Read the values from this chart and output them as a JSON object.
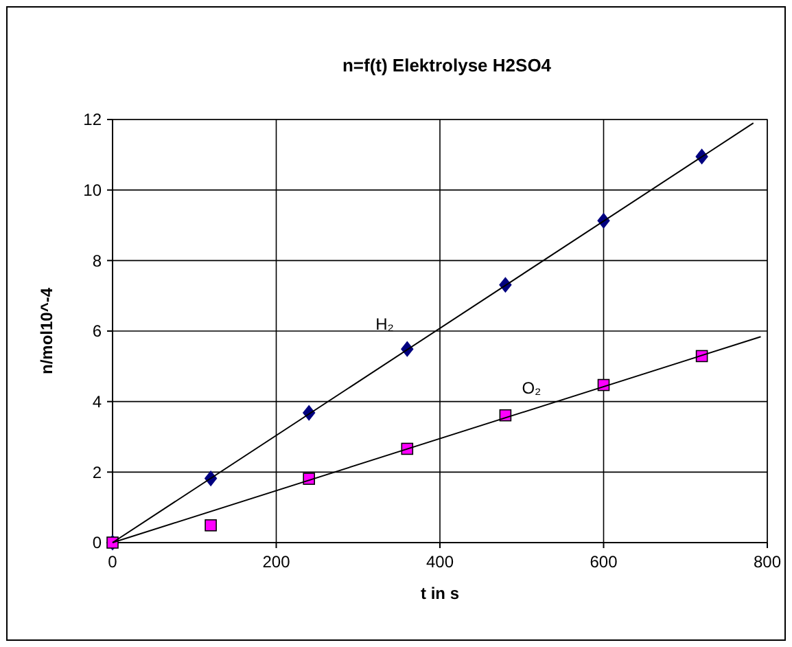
{
  "chart_data": {
    "type": "scatter",
    "title": "n=f(t) Elektrolyse H2SO4",
    "xlabel": "t in s",
    "ylabel": "n/mol10^-4",
    "x": [
      0,
      120,
      240,
      360,
      480,
      600,
      720
    ],
    "series": [
      {
        "name": "H₂",
        "color": "#000080",
        "marker": "diamond",
        "values": [
          0,
          1.82,
          3.68,
          5.49,
          7.31,
          9.13,
          10.95
        ]
      },
      {
        "name": "O₂",
        "color": "#ff00ff",
        "marker": "square",
        "values": [
          0,
          0.49,
          1.81,
          2.66,
          3.61,
          4.47,
          5.29
        ]
      },
      {
        "type": "line",
        "color": "#000000",
        "x": [
          0,
          783
        ],
        "values": [
          0,
          11.9
        ]
      },
      {
        "type": "line",
        "color": "#000000",
        "x": [
          0,
          792
        ],
        "values": [
          0,
          5.84
        ]
      }
    ],
    "xlim": [
      0,
      800
    ],
    "ylim": [
      0,
      12
    ],
    "xticks": [
      0,
      200,
      400,
      600,
      800
    ],
    "yticks": [
      0,
      2,
      4,
      6,
      8,
      10,
      12
    ],
    "grid": true
  }
}
